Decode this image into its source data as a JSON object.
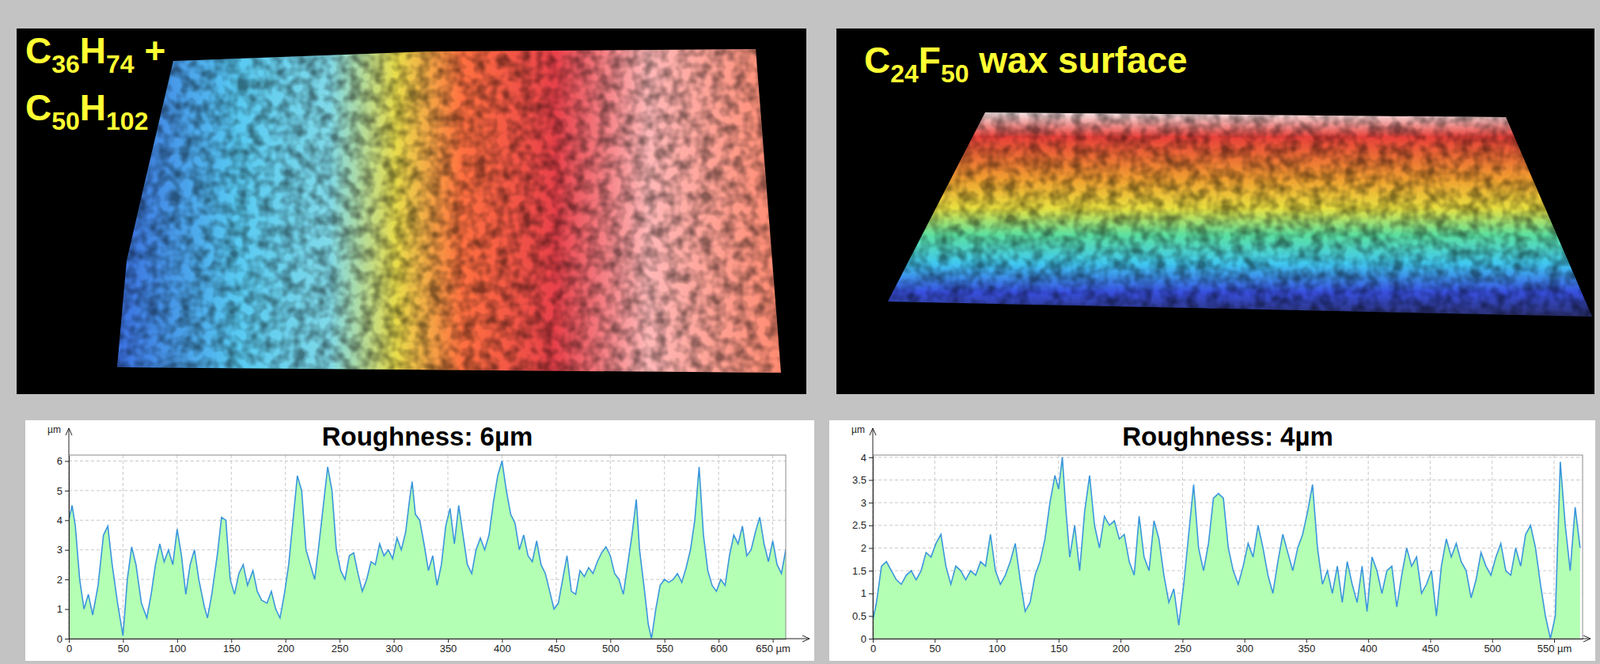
{
  "chart_data": [
    {
      "type": "area",
      "title": "Roughness: 6µm",
      "annotations": [
        "C36H74 +",
        "C50H102"
      ],
      "y_label": "µm",
      "color": "#3a96dc",
      "grid": true,
      "xlim": [
        0,
        662
      ],
      "ylim": [
        0,
        6.2
      ],
      "xticks": [
        0,
        50,
        100,
        150,
        200,
        250,
        300,
        350,
        400,
        450,
        500,
        550,
        600,
        {
          "value": 650,
          "label": "650 µm"
        }
      ],
      "yticks": [
        0,
        1,
        2,
        3,
        4,
        5,
        6
      ],
      "x": [
        0,
        3,
        6,
        10,
        14,
        18,
        22,
        27,
        32,
        36,
        40,
        45,
        50,
        54,
        58,
        62,
        67,
        72,
        76,
        80,
        84,
        88,
        92,
        96,
        100,
        104,
        108,
        112,
        116,
        120,
        125,
        128,
        132,
        137,
        141,
        145,
        149,
        153,
        157,
        161,
        165,
        170,
        174,
        178,
        183,
        187,
        191,
        195,
        199,
        203,
        207,
        211,
        215,
        219,
        223,
        227,
        231,
        235,
        239,
        243,
        247,
        251,
        255,
        259,
        263,
        267,
        271,
        275,
        279,
        283,
        287,
        291,
        295,
        299,
        303,
        307,
        311,
        315,
        317,
        320,
        324,
        328,
        332,
        336,
        340,
        344,
        348,
        352,
        356,
        360,
        364,
        368,
        372,
        376,
        380,
        384,
        388,
        392,
        396,
        400,
        404,
        408,
        412,
        416,
        420,
        424,
        428,
        432,
        436,
        440,
        444,
        448,
        452,
        456,
        460,
        464,
        468,
        472,
        476,
        480,
        484,
        488,
        492,
        496,
        500,
        504,
        508,
        512,
        516,
        520,
        524,
        527,
        531,
        535,
        538,
        542,
        546,
        550,
        554,
        558,
        562,
        566,
        570,
        574,
        578,
        582,
        586,
        590,
        594,
        598,
        602,
        606,
        610,
        614,
        618,
        622,
        626,
        630,
        634,
        638,
        642,
        646,
        650,
        654,
        658,
        662
      ],
      "values": [
        4.0,
        4.5,
        3.8,
        2.0,
        1.0,
        1.5,
        0.8,
        1.8,
        3.5,
        3.8,
        2.5,
        1.2,
        0.1,
        2.0,
        3.1,
        2.5,
        1.2,
        0.7,
        1.5,
        2.5,
        3.2,
        2.6,
        3.0,
        2.5,
        3.7,
        2.8,
        1.5,
        2.5,
        3.0,
        2.0,
        1.1,
        0.7,
        1.5,
        2.8,
        4.1,
        4.0,
        2.0,
        1.5,
        2.2,
        2.5,
        1.8,
        2.3,
        1.6,
        1.3,
        1.2,
        1.6,
        1.0,
        0.7,
        1.5,
        2.5,
        4.0,
        5.5,
        5.0,
        3.0,
        2.5,
        2.0,
        3.2,
        4.5,
        5.8,
        5.0,
        3.0,
        2.3,
        2.0,
        2.8,
        2.9,
        2.2,
        1.6,
        2.0,
        2.6,
        2.5,
        3.2,
        2.8,
        3.0,
        2.7,
        3.4,
        3.0,
        3.6,
        4.8,
        5.3,
        4.2,
        4.0,
        3.2,
        2.3,
        2.8,
        1.8,
        2.5,
        3.8,
        4.4,
        3.2,
        4.5,
        3.5,
        2.5,
        2.2,
        3.0,
        3.4,
        3.0,
        3.5,
        4.6,
        5.5,
        6.0,
        5.0,
        4.2,
        3.9,
        3.0,
        3.5,
        2.8,
        2.6,
        3.3,
        2.5,
        2.2,
        1.6,
        1.0,
        1.2,
        2.0,
        2.8,
        1.6,
        1.5,
        2.3,
        2.1,
        2.4,
        2.2,
        2.6,
        2.9,
        3.1,
        2.8,
        2.2,
        2.0,
        1.5,
        2.5,
        3.5,
        4.7,
        3.0,
        1.8,
        0.5,
        0.0,
        1.0,
        1.8,
        2.0,
        1.9,
        2.0,
        2.2,
        1.9,
        2.4,
        3.0,
        4.0,
        5.8,
        3.5,
        2.3,
        1.8,
        1.6,
        2.0,
        1.8,
        2.8,
        3.5,
        3.2,
        3.8,
        2.8,
        3.0,
        3.6,
        4.1,
        3.2,
        2.6,
        3.3,
        2.5,
        2.2,
        3.0
      ]
    },
    {
      "type": "area",
      "title": "Roughness: 4µm",
      "annotations": [
        "C24F50 wax surface"
      ],
      "y_label": "µm",
      "color": "#3a96dc",
      "grid": true,
      "xlim": [
        0,
        573
      ],
      "ylim": [
        0,
        4.05
      ],
      "xticks": [
        0,
        50,
        100,
        150,
        200,
        250,
        300,
        350,
        400,
        450,
        500,
        {
          "value": 550,
          "label": "550 µm"
        }
      ],
      "yticks": [
        0,
        0.5,
        1,
        1.5,
        2,
        2.5,
        3,
        3.5,
        4
      ],
      "x": [
        0,
        3,
        7,
        11,
        15,
        19,
        23,
        27,
        31,
        35,
        39,
        43,
        47,
        51,
        55,
        59,
        63,
        67,
        71,
        75,
        79,
        83,
        87,
        91,
        95,
        99,
        103,
        107,
        111,
        115,
        119,
        123,
        127,
        131,
        135,
        139,
        143,
        147,
        150,
        153,
        156,
        159,
        163,
        167,
        171,
        175,
        179,
        183,
        187,
        191,
        195,
        199,
        203,
        207,
        211,
        215,
        219,
        223,
        227,
        231,
        235,
        239,
        243,
        247,
        251,
        255,
        259,
        263,
        267,
        271,
        275,
        279,
        283,
        287,
        291,
        295,
        299,
        303,
        307,
        311,
        315,
        319,
        323,
        327,
        331,
        335,
        339,
        343,
        347,
        351,
        355,
        359,
        363,
        367,
        371,
        375,
        379,
        383,
        387,
        391,
        395,
        399,
        403,
        407,
        411,
        415,
        419,
        423,
        427,
        431,
        435,
        439,
        443,
        447,
        451,
        455,
        459,
        463,
        467,
        471,
        475,
        479,
        483,
        487,
        491,
        495,
        499,
        503,
        507,
        511,
        515,
        519,
        523,
        527,
        531,
        535,
        539,
        543,
        547,
        551,
        555,
        559,
        563,
        567,
        571
      ],
      "values": [
        0.4,
        0.8,
        1.6,
        1.7,
        1.5,
        1.3,
        1.2,
        1.4,
        1.5,
        1.3,
        1.5,
        1.9,
        1.8,
        2.1,
        2.3,
        1.6,
        1.2,
        1.6,
        1.5,
        1.3,
        1.5,
        1.4,
        1.7,
        1.6,
        2.3,
        1.5,
        1.2,
        1.4,
        1.7,
        2.1,
        1.3,
        0.6,
        0.8,
        1.4,
        1.7,
        2.2,
        3.0,
        3.6,
        3.3,
        4.0,
        2.8,
        1.8,
        2.5,
        1.5,
        2.8,
        3.6,
        2.5,
        2.0,
        2.7,
        2.5,
        2.6,
        2.2,
        2.3,
        1.7,
        1.4,
        2.7,
        1.8,
        1.5,
        2.6,
        2.2,
        1.4,
        0.8,
        1.1,
        0.3,
        1.2,
        2.3,
        3.4,
        2.0,
        1.5,
        2.1,
        3.1,
        3.2,
        3.1,
        2.0,
        1.5,
        1.2,
        1.6,
        2.1,
        1.8,
        2.5,
        2.0,
        1.4,
        1.0,
        1.7,
        2.3,
        1.9,
        1.5,
        2.0,
        2.3,
        2.8,
        3.4,
        2.0,
        1.2,
        1.5,
        1.0,
        1.6,
        0.8,
        1.7,
        1.2,
        0.8,
        1.6,
        0.6,
        1.8,
        1.5,
        1.0,
        1.5,
        1.6,
        0.7,
        1.4,
        2.0,
        1.6,
        1.8,
        1.0,
        1.2,
        1.5,
        0.5,
        1.6,
        2.2,
        1.8,
        2.1,
        1.7,
        1.5,
        0.9,
        1.3,
        1.9,
        1.6,
        1.4,
        1.8,
        2.1,
        1.5,
        1.4,
        2.0,
        1.6,
        2.3,
        2.5,
        2.0,
        1.2,
        0.5,
        0.0,
        0.5,
        3.9,
        2.5,
        1.5,
        2.9,
        2.0
      ]
    }
  ]
}
